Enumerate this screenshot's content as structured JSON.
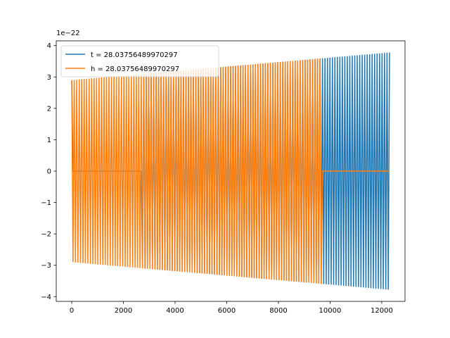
{
  "chart_data": {
    "type": "line",
    "offset_text": "1e−22",
    "x_ticks": [
      "0",
      "2000",
      "4000",
      "6000",
      "8000",
      "10000",
      "12000"
    ],
    "x_tick_values": [
      0,
      2000,
      4000,
      6000,
      8000,
      10000,
      12000
    ],
    "y_ticks": [
      "−4",
      "−3",
      "−2",
      "−1",
      "0",
      "1",
      "2",
      "3",
      "4"
    ],
    "y_tick_values": [
      -4,
      -3,
      -2,
      -1,
      0,
      1,
      2,
      3,
      4
    ],
    "xlim": [
      -600,
      12900
    ],
    "ylim": [
      -4.15,
      4.15
    ],
    "legend_position": "upper-left",
    "series": [
      {
        "name": "t = 28.03756489970297",
        "color": "#1f77b4",
        "x_range": [
          0,
          12300
        ],
        "silent_range": [
          20,
          2700
        ],
        "amplitude_start": 2.9,
        "amplitude_end": 3.78,
        "cycles": 128
      },
      {
        "name": "h = 28.03756489970297",
        "color": "#ff7f0e",
        "x_range": [
          0,
          12300
        ],
        "active_range": [
          0,
          9700
        ],
        "amplitude_start": 2.9,
        "amplitude_end": 3.78,
        "cycles": 128
      }
    ]
  }
}
